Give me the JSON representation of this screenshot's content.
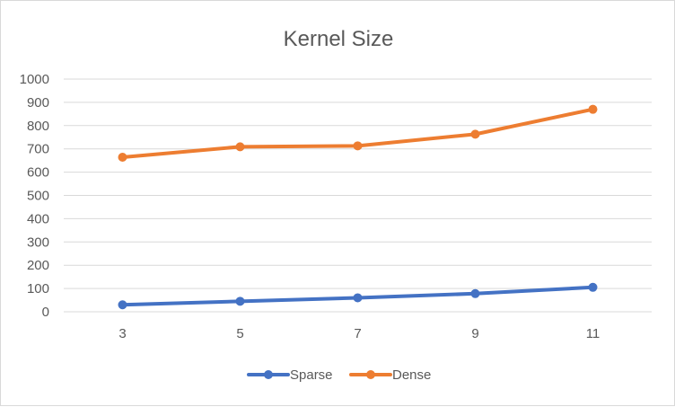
{
  "chart_data": {
    "type": "line",
    "title": "Kernel Size",
    "xlabel": "",
    "ylabel": "",
    "categories": [
      "3",
      "5",
      "7",
      "9",
      "11"
    ],
    "ylim": [
      0,
      1000
    ],
    "yticks": [
      "0",
      "100",
      "200",
      "300",
      "400",
      "500",
      "600",
      "700",
      "800",
      "900",
      "1000"
    ],
    "grid": true,
    "legend_position": "bottom",
    "series": [
      {
        "name": "Sparse",
        "color": "#4472c4",
        "values": [
          30,
          45,
          60,
          78,
          105
        ]
      },
      {
        "name": "Dense",
        "color": "#ed7d31",
        "values": [
          664,
          709,
          713,
          763,
          870
        ]
      }
    ]
  }
}
